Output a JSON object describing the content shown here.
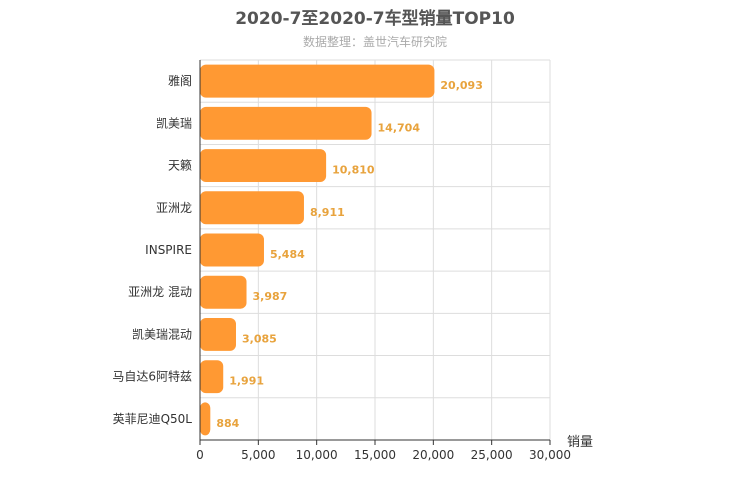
{
  "chart_data": {
    "type": "bar",
    "orientation": "horizontal",
    "title": "2020-7至2020-7车型销量TOP10",
    "subtitle": "数据整理：盖世汽车研究院",
    "xlabel": "销量",
    "ylabel": "",
    "xlim": [
      0,
      30000
    ],
    "xticks": [
      "0",
      "5,000",
      "10,000",
      "15,000",
      "20,000",
      "25,000",
      "30,000"
    ],
    "xtick_values": [
      0,
      5000,
      10000,
      15000,
      20000,
      25000,
      30000
    ],
    "grid": true,
    "bar_color": "#ff9933",
    "label_color": "#e8a33d",
    "categories": [
      "雅阁",
      "凯美瑞",
      "天籁",
      "亚洲龙",
      "INSPIRE",
      "亚洲龙 混动",
      "凯美瑞混动",
      "马自达6阿特兹",
      "英菲尼迪Q50L"
    ],
    "values": [
      20093,
      14704,
      10810,
      8911,
      5484,
      3987,
      3085,
      1991,
      884
    ],
    "value_labels": [
      "20,093",
      "14,704",
      "10,810",
      "8,911",
      "5,484",
      "3,987",
      "3,085",
      "1,991",
      "884"
    ]
  }
}
